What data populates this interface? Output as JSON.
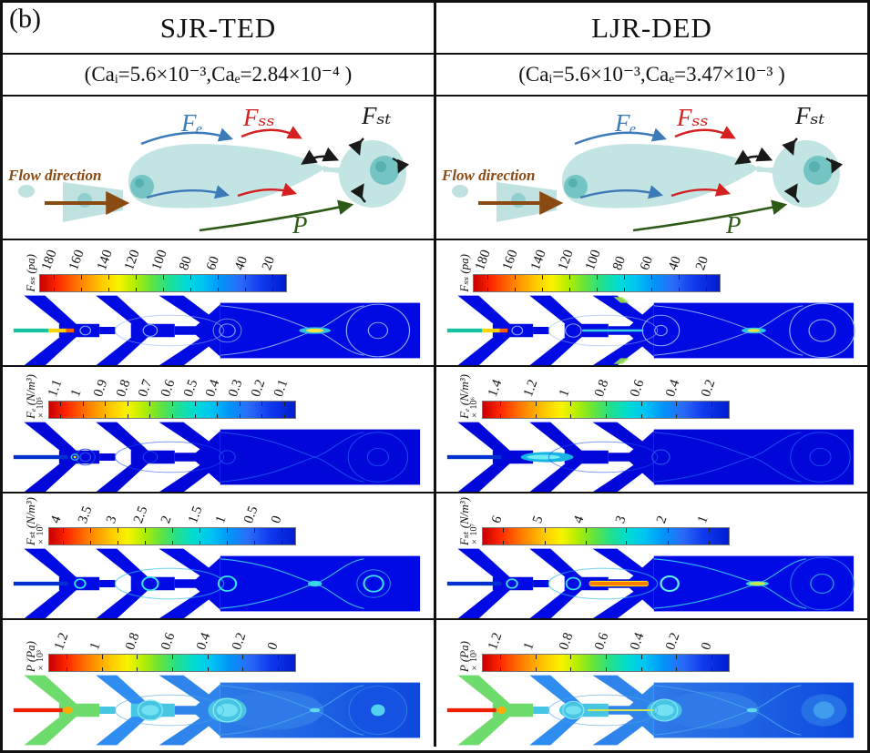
{
  "panel_label": "(b)",
  "columns": [
    {
      "title": "SJR-TED",
      "condition": "(Caᵢ=5.6×10⁻³,Caₑ=2.84×10⁻⁴ )"
    },
    {
      "title": "LJR-DED",
      "condition": "(Caᵢ=5.6×10⁻³,Caₑ=3.47×10⁻³ )"
    }
  ],
  "schematic": {
    "flow_direction": "Flow direction",
    "fe": "Fₑ",
    "fss": "Fₛₛ",
    "fst": "Fₛₜ",
    "p": "P"
  },
  "sim_rows": [
    {
      "id": "fss",
      "left": {
        "label": "Fₛₛ (pa)",
        "exp": "",
        "ticks": [
          "180",
          "160",
          "140",
          "120",
          "100",
          "80",
          "60",
          "40",
          "20"
        ]
      },
      "right": {
        "label": "Fₛₛ (pa)",
        "exp": "",
        "ticks": [
          "180",
          "160",
          "140",
          "120",
          "100",
          "80",
          "60",
          "40",
          "20"
        ]
      }
    },
    {
      "id": "fe",
      "left": {
        "label": "Fₑ (N/m³)",
        "exp": "×10⁵",
        "ticks": [
          "1.1",
          "1",
          "0.9",
          "0.8",
          "0.7",
          "0.6",
          "0.5",
          "0.4",
          "0.3",
          "0.2",
          "0.1"
        ]
      },
      "right": {
        "label": "Fₑ (N/m³)",
        "exp": "×10⁶",
        "ticks": [
          "1.4",
          "1.2",
          "1",
          "0.8",
          "0.6",
          "0.4",
          "0.2"
        ]
      }
    },
    {
      "id": "fst",
      "left": {
        "label": "Fₛₜ (N/m³)",
        "exp": "×10⁷",
        "ticks": [
          "4",
          "3.5",
          "3",
          "2.5",
          "2",
          "1.5",
          "1",
          "0.5",
          "0"
        ]
      },
      "right": {
        "label": "Fₛₜ (N/m³)",
        "exp": "×10⁷",
        "ticks": [
          "6",
          "5",
          "4",
          "3",
          "2",
          "1"
        ]
      }
    },
    {
      "id": "p",
      "left": {
        "label": "P (Pa)",
        "exp": "×10³",
        "ticks": [
          "1.2",
          "1",
          "0.8",
          "0.6",
          "0.4",
          "0.2",
          "0"
        ]
      },
      "right": {
        "label": "P (Pa)",
        "exp": "×10³",
        "ticks": [
          "1.2",
          "1",
          "0.8",
          "0.6",
          "0.4",
          "0.2",
          "0"
        ]
      }
    }
  ],
  "colors": {
    "colormap_high_to_low": [
      "#c80000",
      "#ff7e00",
      "#f8f400",
      "#66e43a",
      "#00dcd4",
      "#0096f8",
      "#001cd0"
    ],
    "heat_base_blue": "#000be3",
    "fe_label_color": "#3d7ab8",
    "fss_label_color": "#d42020",
    "fst_label_color": "#1a1a1a",
    "p_label_color": "#2d5a16",
    "flow_label_color": "#8b4a12",
    "droplet_fill": "#c2e4e2"
  }
}
